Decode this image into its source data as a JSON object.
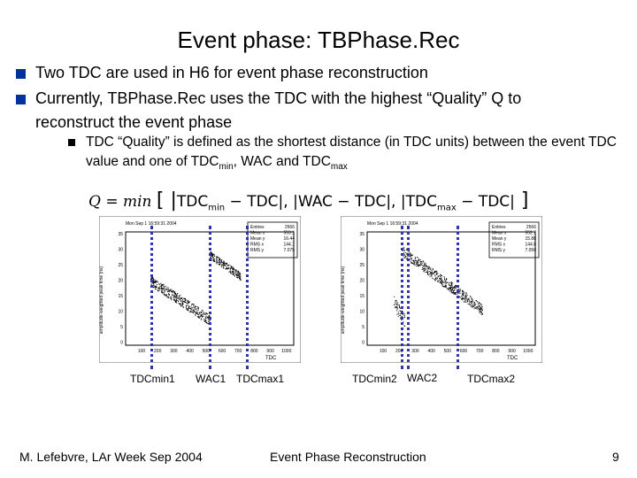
{
  "title": "Event phase: TBPhase.Rec",
  "bullets": [
    "Two TDC are used in H6 for event phase reconstruction",
    "Currently, TBPhase.Rec uses the TDC with the highest “Quality” Q to reconstruct the event phase"
  ],
  "sub_bullet": {
    "text_a": "TDC “Quality” is defined as the shortest distance (in TDC units) between the event TDC value and one of TDC",
    "sub_min": "min",
    "text_b": ", WAC and TDC",
    "sub_max": "max"
  },
  "formula": {
    "lhs": "Q = min",
    "tdc": "TDC",
    "min": "min",
    "max": "max",
    "wac": "WAC"
  },
  "plot_left": {
    "ylabel": "amplitude-weighted peak time (ns)",
    "xlabel": "TDC",
    "header": "Mon Sep 1 16:59:31 2004",
    "stats": [
      [
        "Entries",
        "2566"
      ],
      [
        "Mean x",
        "553.1"
      ],
      [
        "Mean y",
        "16.44"
      ],
      [
        "RMS x",
        "144.1"
      ],
      [
        "RMS y",
        "7.075"
      ]
    ],
    "yticks": [
      "35",
      "30",
      "25",
      "20",
      "15",
      "10",
      "5",
      "0"
    ],
    "xticks": [
      "100",
      "200",
      "300",
      "400",
      "500",
      "600",
      "700",
      "800",
      "900",
      "1000"
    ]
  },
  "plot_right": {
    "ylabel": "amplitude-weighted peak time (ns)",
    "xlabel": "TDC",
    "header": "Mon Sep 1 16:59:31 2004",
    "stats": [
      [
        "Entries",
        "2566"
      ],
      [
        "Mean x",
        "552.7"
      ],
      [
        "Mean y",
        "15.88"
      ],
      [
        "RMS x",
        "144.8"
      ],
      [
        "RMS y",
        "7.050"
      ]
    ],
    "yticks": [
      "35",
      "30",
      "25",
      "20",
      "15",
      "10",
      "5",
      "0"
    ],
    "xticks": [
      "100",
      "200",
      "300",
      "400",
      "500",
      "600",
      "700",
      "800",
      "900",
      "1000"
    ]
  },
  "labels": {
    "tdcmin1": "TDCmin1",
    "wac1": "WAC1",
    "tdcmax1": "TDCmax1",
    "tdcmin2": "TDCmin2",
    "wac2": "WAC2",
    "tdcmax2": "TDCmax2"
  },
  "footer": {
    "author": "M. Lefebvre, LAr Week Sep 2004",
    "center": "Event Phase Reconstruction",
    "page": "9"
  },
  "colors": {
    "bullet": "#003399",
    "marker": "#3333aa"
  }
}
